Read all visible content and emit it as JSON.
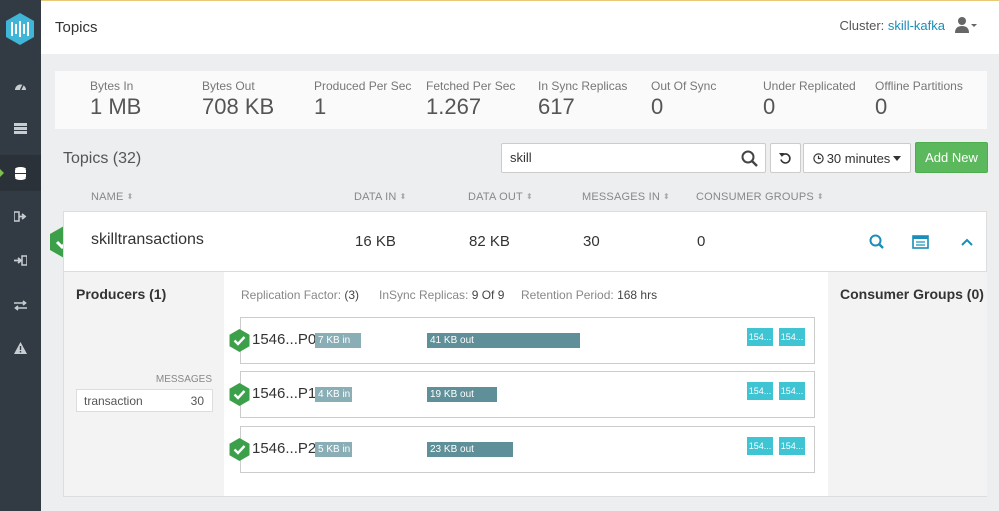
{
  "header": {
    "title": "Topics",
    "cluster_label": "Cluster:",
    "cluster_name": "skill-kafka"
  },
  "sidebar": {
    "items": [
      {
        "icon": "dashboard-icon"
      },
      {
        "icon": "brokers-icon"
      },
      {
        "icon": "topics-database-icon",
        "active": true
      },
      {
        "icon": "consumers-icon"
      },
      {
        "icon": "producers-icon"
      },
      {
        "icon": "replication-icon"
      },
      {
        "icon": "alerts-icon"
      }
    ]
  },
  "metrics": [
    {
      "label": "Bytes In",
      "value": "1 MB"
    },
    {
      "label": "Bytes Out",
      "value": "708 KB"
    },
    {
      "label": "Produced Per Sec",
      "value": "1"
    },
    {
      "label": "Fetched Per Sec",
      "value": "1.267"
    },
    {
      "label": "In Sync Replicas",
      "value": "617"
    },
    {
      "label": "Out Of Sync",
      "value": "0"
    },
    {
      "label": "Under Replicated",
      "value": "0"
    },
    {
      "label": "Offline Partitions",
      "value": "0"
    }
  ],
  "topics": {
    "title": "Topics (32)",
    "search_value": "skill",
    "time_range": "30 minutes",
    "add_new": "Add New"
  },
  "columns": [
    "NAME",
    "DATA IN",
    "DATA OUT",
    "MESSAGES IN",
    "CONSUMER GROUPS"
  ],
  "row": {
    "name": "skilltransactions",
    "data_in": "16 KB",
    "data_out": "82 KB",
    "messages_in": "30",
    "consumer_groups": "0"
  },
  "detail": {
    "producers_title": "Producers (1)",
    "messages_label": "MESSAGES",
    "producer": {
      "name": "transaction",
      "count": "30"
    },
    "replication_factor_label": "Replication Factor:",
    "replication_factor": "(3)",
    "insync_label": "InSync Replicas:",
    "insync_value": "9 Of 9",
    "retention_label": "Retention Period:",
    "retention_value": "168 hrs",
    "consumer_groups_title": "Consumer Groups (0)",
    "partitions": [
      {
        "name": "1546...P0",
        "in": "7 KB in",
        "out": "41 KB out",
        "replicas": [
          "154...",
          "154..."
        ]
      },
      {
        "name": "1546...P1",
        "in": "4 KB in",
        "out": "19 KB out",
        "replicas": [
          "154...",
          "154..."
        ]
      },
      {
        "name": "1546...P2",
        "in": "5 KB in",
        "out": "23 KB out",
        "replicas": [
          "154...",
          "154..."
        ]
      }
    ]
  },
  "colors": {
    "accent": "#1a8db8",
    "success": "#5cb85c",
    "sidebar": "#323b44",
    "bar_in": "#8aaeb6",
    "bar_out": "#5f8f98",
    "replica": "#3fc4d4"
  }
}
